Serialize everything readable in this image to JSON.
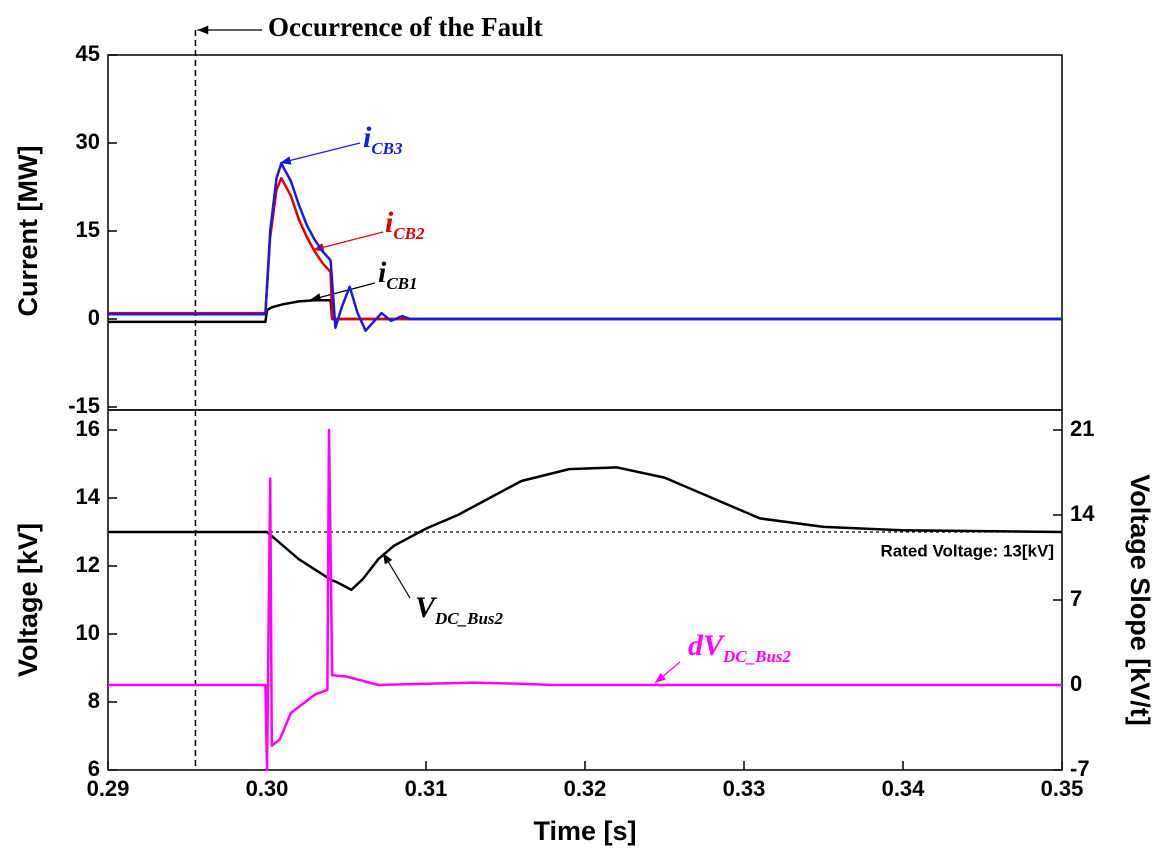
{
  "chart_data": [
    {
      "type": "line",
      "ylabel": "Current [MW]",
      "xlim": [
        0.29,
        0.35
      ],
      "ylim": [
        -15,
        45
      ],
      "yticks": [
        -15,
        0,
        15,
        30,
        45
      ],
      "annotations": [
        {
          "text": "Occurrence of the Fault",
          "x": 0.2955
        }
      ],
      "series": [
        {
          "name": "i",
          "name_sub": "CB1",
          "color": "#000000",
          "x": [
            0.29,
            0.2999,
            0.3,
            0.3003,
            0.301,
            0.302,
            0.303,
            0.304,
            0.3041,
            0.35
          ],
          "values": [
            -0.5,
            -0.5,
            1.5,
            2,
            2.5,
            3,
            3.2,
            3.2,
            0,
            0
          ]
        },
        {
          "name": "i",
          "name_sub": "CB2",
          "color": "#e00000",
          "x": [
            0.29,
            0.2999,
            0.3002,
            0.3006,
            0.3009,
            0.3015,
            0.302,
            0.3025,
            0.303,
            0.3035,
            0.304,
            0.3041,
            0.35
          ],
          "values": [
            1,
            1,
            14,
            22,
            24,
            21,
            17,
            14,
            11.5,
            9.5,
            8,
            0,
            0
          ]
        },
        {
          "name": "i",
          "name_sub": "CB3",
          "color": "#1a1ae6",
          "x": [
            0.29,
            0.2999,
            0.3002,
            0.3006,
            0.3009,
            0.3015,
            0.302,
            0.3025,
            0.303,
            0.3035,
            0.304,
            0.3043,
            0.3047,
            0.3052,
            0.3057,
            0.3062,
            0.3067,
            0.3072,
            0.3078,
            0.3085,
            0.309,
            0.35
          ],
          "values": [
            0.8,
            0.8,
            15,
            24,
            26.5,
            23.5,
            19.5,
            16,
            13.5,
            11.5,
            10,
            -1.5,
            2,
            5.5,
            1,
            -2,
            -0.5,
            1,
            -0.3,
            0.5,
            0,
            0
          ]
        }
      ]
    },
    {
      "type": "line",
      "xlabel": "Time [s]",
      "ylabel": "Voltage [kV]",
      "y2label": "Voltage Slope [kV/t]",
      "xlim": [
        0.29,
        0.35
      ],
      "xticks": [
        0.29,
        {
          "value": 0.3,
          "label": "0.30"
        },
        0.31,
        0.32,
        0.33,
        0.34,
        0.35
      ],
      "ylim": [
        6,
        16
      ],
      "yticks": [
        6,
        8,
        10,
        12,
        14,
        16
      ],
      "y2lim": [
        -7,
        21
      ],
      "y2ticks": [
        -7,
        0,
        7,
        14,
        21
      ],
      "annotations": [
        {
          "text": "Rated Voltage: 13[kV]",
          "y": 13
        }
      ],
      "series": [
        {
          "name": "V",
          "name_sub": "DC_Bus2",
          "color": "#000000",
          "x": [
            0.29,
            0.3,
            0.3005,
            0.302,
            0.304,
            0.3045,
            0.3053,
            0.306,
            0.307,
            0.308,
            0.31,
            0.312,
            0.314,
            0.316,
            0.319,
            0.322,
            0.325,
            0.328,
            0.331,
            0.335,
            0.34,
            0.35
          ],
          "values": [
            13,
            13,
            12.8,
            12.2,
            11.6,
            11.5,
            11.3,
            11.6,
            12.2,
            12.6,
            13.1,
            13.5,
            14.0,
            14.5,
            14.85,
            14.9,
            14.6,
            14.0,
            13.4,
            13.15,
            13.05,
            13.0
          ]
        },
        {
          "name": "dV",
          "name_sub": "DC_Bus2",
          "color": "#ff00ff",
          "axis": "y2",
          "x": [
            0.29,
            0.2999,
            0.3,
            0.3002,
            0.3003,
            0.3008,
            0.3015,
            0.303,
            0.3038,
            0.3039,
            0.3041,
            0.305,
            0.307,
            0.313,
            0.316,
            0.318,
            0.35
          ],
          "values": [
            0,
            0,
            -7,
            17,
            -5,
            -4.5,
            -2.3,
            -0.8,
            -0.4,
            21,
            0.8,
            0.7,
            0,
            0.2,
            0.1,
            0,
            0
          ]
        }
      ]
    }
  ]
}
